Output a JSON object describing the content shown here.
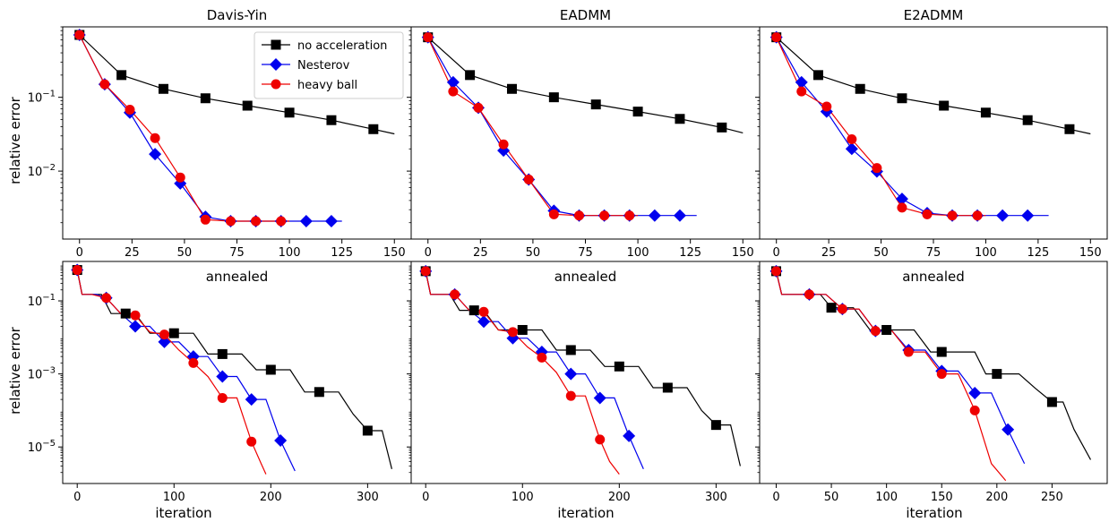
{
  "figure": {
    "ylabel": "relative error",
    "xlabel": "iteration",
    "colors": {
      "none": "#000000",
      "nesterov": "#0000ee",
      "heavy": "#ee0000"
    },
    "legend": {
      "placement": "top-right of first panel",
      "entries": [
        "no acceleration",
        "Nesterov",
        "heavy ball"
      ]
    }
  },
  "chart_data": [
    {
      "type": "line",
      "title": "Davis-Yin",
      "yscale": "log",
      "xlim": [
        -8,
        158
      ],
      "ylim": [
        0.0012,
        0.9
      ],
      "xticks": [
        0,
        25,
        50,
        75,
        100,
        125,
        150
      ],
      "yticks": [
        {
          "v": 0.1,
          "label": "10^-1"
        },
        {
          "v": 0.01,
          "label": "10^-2"
        }
      ],
      "series": [
        {
          "name": "no acceleration",
          "color": "#000000",
          "marker": "square",
          "x": [
            0,
            20,
            40,
            60,
            80,
            100,
            120,
            140,
            150
          ],
          "y": [
            0.7,
            0.2,
            0.13,
            0.097,
            0.077,
            0.062,
            0.049,
            0.037,
            0.032
          ],
          "markers": [
            0,
            20,
            40,
            60,
            80,
            100,
            120,
            140
          ]
        },
        {
          "name": "Nesterov",
          "color": "#0000ee",
          "marker": "diamond",
          "x": [
            0,
            12,
            24,
            36,
            48,
            60,
            72,
            84,
            96,
            108,
            120,
            125
          ],
          "y": [
            0.7,
            0.15,
            0.062,
            0.017,
            0.0068,
            0.0024,
            0.0021,
            0.0021,
            0.0021,
            0.0021,
            0.0021,
            0.0021
          ],
          "markers": [
            0,
            12,
            24,
            36,
            48,
            60,
            72,
            84,
            96,
            108,
            120
          ]
        },
        {
          "name": "heavy ball",
          "color": "#ee0000",
          "marker": "circle",
          "x": [
            0,
            12,
            24,
            36,
            48,
            60,
            72,
            84,
            96,
            100
          ],
          "y": [
            0.7,
            0.15,
            0.068,
            0.028,
            0.0082,
            0.0022,
            0.0021,
            0.0021,
            0.0021,
            0.0021
          ],
          "markers": [
            0,
            12,
            24,
            36,
            48,
            60,
            72,
            84,
            96
          ]
        }
      ]
    },
    {
      "type": "line",
      "title": "EADMM",
      "yscale": "log",
      "xlim": [
        -8,
        158
      ],
      "ylim": [
        0.0012,
        0.9
      ],
      "xticks": [
        0,
        25,
        50,
        75,
        100,
        125,
        150
      ],
      "yticks": [
        {
          "v": 0.1,
          "label": ""
        },
        {
          "v": 0.01,
          "label": ""
        }
      ],
      "series": [
        {
          "name": "no acceleration",
          "color": "#000000",
          "marker": "square",
          "x": [
            0,
            20,
            40,
            60,
            80,
            100,
            120,
            140,
            150
          ],
          "y": [
            0.65,
            0.2,
            0.13,
            0.1,
            0.08,
            0.064,
            0.051,
            0.039,
            0.033
          ],
          "markers": [
            0,
            20,
            40,
            60,
            80,
            100,
            120,
            140
          ]
        },
        {
          "name": "Nesterov",
          "color": "#0000ee",
          "marker": "diamond",
          "x": [
            0,
            12,
            24,
            36,
            48,
            60,
            72,
            84,
            96,
            108,
            120,
            128
          ],
          "y": [
            0.65,
            0.16,
            0.072,
            0.019,
            0.0077,
            0.0029,
            0.0025,
            0.0025,
            0.0025,
            0.0025,
            0.0025,
            0.0025
          ],
          "markers": [
            0,
            12,
            24,
            36,
            48,
            60,
            72,
            84,
            96,
            108,
            120
          ]
        },
        {
          "name": "heavy ball",
          "color": "#ee0000",
          "marker": "circle",
          "x": [
            0,
            12,
            24,
            36,
            48,
            60,
            72,
            84,
            96,
            100
          ],
          "y": [
            0.65,
            0.12,
            0.072,
            0.023,
            0.0077,
            0.0026,
            0.0025,
            0.0025,
            0.0025,
            0.0025
          ],
          "markers": [
            0,
            12,
            24,
            36,
            48,
            60,
            72,
            84,
            96
          ]
        }
      ]
    },
    {
      "type": "line",
      "title": "E2ADMM",
      "yscale": "log",
      "xlim": [
        -8,
        158
      ],
      "ylim": [
        0.0012,
        0.9
      ],
      "xticks": [
        0,
        25,
        50,
        75,
        100,
        125,
        150
      ],
      "yticks": [
        {
          "v": 0.1,
          "label": ""
        },
        {
          "v": 0.01,
          "label": ""
        }
      ],
      "series": [
        {
          "name": "no acceleration",
          "color": "#000000",
          "marker": "square",
          "x": [
            0,
            20,
            40,
            60,
            80,
            100,
            120,
            140,
            150
          ],
          "y": [
            0.65,
            0.2,
            0.13,
            0.097,
            0.077,
            0.062,
            0.049,
            0.037,
            0.032
          ],
          "markers": [
            0,
            20,
            40,
            60,
            80,
            100,
            120,
            140
          ]
        },
        {
          "name": "Nesterov",
          "color": "#0000ee",
          "marker": "diamond",
          "x": [
            0,
            12,
            24,
            36,
            48,
            60,
            72,
            84,
            96,
            108,
            120,
            130
          ],
          "y": [
            0.65,
            0.16,
            0.064,
            0.02,
            0.0099,
            0.0042,
            0.0027,
            0.0025,
            0.0025,
            0.0025,
            0.0025,
            0.0025
          ],
          "markers": [
            0,
            12,
            24,
            36,
            48,
            60,
            72,
            84,
            96,
            108,
            120
          ]
        },
        {
          "name": "heavy ball",
          "color": "#ee0000",
          "marker": "circle",
          "x": [
            0,
            12,
            24,
            36,
            48,
            60,
            72,
            84,
            96,
            100
          ],
          "y": [
            0.65,
            0.12,
            0.075,
            0.027,
            0.011,
            0.0032,
            0.0026,
            0.0025,
            0.0025,
            0.0025
          ],
          "markers": [
            0,
            12,
            24,
            36,
            48,
            60,
            72,
            84,
            96
          ]
        }
      ]
    },
    {
      "type": "line",
      "title": "annealed",
      "yscale": "log",
      "xlim": [
        -15,
        345
      ],
      "ylim": [
        1e-06,
        1.2
      ],
      "xticks": [
        0,
        100,
        200,
        300
      ],
      "yticks": [
        {
          "v": 0.1,
          "label": "10^-1"
        },
        {
          "v": 0.001,
          "label": "10^-3"
        },
        {
          "v": 1e-05,
          "label": "10^-5"
        }
      ],
      "series": [
        {
          "name": "no acceleration",
          "color": "#000000",
          "marker": "square",
          "x": [
            0,
            5,
            25,
            35,
            50,
            60,
            75,
            90,
            100,
            120,
            135,
            150,
            170,
            185,
            200,
            220,
            235,
            250,
            270,
            285,
            300,
            315,
            325
          ],
          "y": [
            0.7,
            0.15,
            0.15,
            0.045,
            0.045,
            0.045,
            0.013,
            0.013,
            0.013,
            0.013,
            0.0035,
            0.0035,
            0.0035,
            0.0013,
            0.0013,
            0.0013,
            0.00032,
            0.00032,
            0.00032,
            8e-05,
            2.8e-05,
            2.8e-05,
            2.5e-06
          ],
          "markers": [
            0,
            50,
            100,
            150,
            200,
            250,
            300
          ]
        },
        {
          "name": "Nesterov",
          "color": "#0000ee",
          "marker": "diamond",
          "x": [
            0,
            5,
            20,
            30,
            45,
            60,
            75,
            90,
            105,
            120,
            135,
            150,
            165,
            180,
            195,
            210,
            225
          ],
          "y": [
            0.7,
            0.15,
            0.15,
            0.12,
            0.045,
            0.02,
            0.02,
            0.0075,
            0.0075,
            0.003,
            0.003,
            0.00085,
            0.00085,
            0.0002,
            0.0002,
            1.5e-05,
            2.2e-06
          ],
          "markers": [
            0,
            30,
            60,
            90,
            120,
            150,
            180,
            210
          ]
        },
        {
          "name": "heavy ball",
          "color": "#ee0000",
          "marker": "circle",
          "x": [
            0,
            5,
            15,
            30,
            45,
            60,
            75,
            90,
            105,
            120,
            135,
            150,
            165,
            180,
            190,
            195
          ],
          "y": [
            0.7,
            0.15,
            0.15,
            0.12,
            0.045,
            0.04,
            0.014,
            0.012,
            0.0045,
            0.002,
            0.00085,
            0.00022,
            0.00022,
            1.4e-05,
            3.5e-06,
            1.8e-06
          ],
          "markers": [
            0,
            30,
            60,
            90,
            120,
            150,
            180
          ]
        }
      ]
    },
    {
      "type": "line",
      "title": "annealed",
      "yscale": "log",
      "xlim": [
        -15,
        345
      ],
      "ylim": [
        1e-06,
        1.2
      ],
      "xticks": [
        0,
        100,
        200,
        300
      ],
      "yticks": [
        {
          "v": 0.1,
          "label": ""
        },
        {
          "v": 0.001,
          "label": ""
        },
        {
          "v": 1e-05,
          "label": ""
        }
      ],
      "series": [
        {
          "name": "no acceleration",
          "color": "#000000",
          "marker": "square",
          "x": [
            0,
            5,
            25,
            35,
            50,
            60,
            75,
            90,
            100,
            120,
            135,
            150,
            170,
            185,
            200,
            220,
            235,
            250,
            270,
            285,
            300,
            315,
            325
          ],
          "y": [
            0.65,
            0.15,
            0.15,
            0.055,
            0.055,
            0.055,
            0.016,
            0.016,
            0.016,
            0.016,
            0.0045,
            0.0045,
            0.0045,
            0.0016,
            0.0016,
            0.0016,
            0.00042,
            0.00042,
            0.00042,
            0.0001,
            4e-05,
            4e-05,
            3e-06
          ],
          "markers": [
            0,
            50,
            100,
            150,
            200,
            250,
            300
          ]
        },
        {
          "name": "Nesterov",
          "color": "#0000ee",
          "marker": "diamond",
          "x": [
            0,
            5,
            20,
            30,
            45,
            60,
            75,
            90,
            105,
            120,
            135,
            150,
            165,
            180,
            195,
            210,
            225
          ],
          "y": [
            0.65,
            0.15,
            0.15,
            0.15,
            0.055,
            0.027,
            0.027,
            0.0095,
            0.0095,
            0.004,
            0.004,
            0.001,
            0.001,
            0.00022,
            0.00022,
            2e-05,
            2.5e-06
          ],
          "markers": [
            0,
            30,
            60,
            90,
            120,
            150,
            180,
            210
          ]
        },
        {
          "name": "heavy ball",
          "color": "#ee0000",
          "marker": "circle",
          "x": [
            0,
            5,
            15,
            30,
            45,
            60,
            75,
            90,
            105,
            120,
            135,
            150,
            165,
            180,
            190,
            200
          ],
          "y": [
            0.65,
            0.15,
            0.15,
            0.15,
            0.055,
            0.05,
            0.016,
            0.014,
            0.0055,
            0.0028,
            0.0011,
            0.00025,
            0.00025,
            1.6e-05,
            4e-06,
            1.8e-06
          ],
          "markers": [
            0,
            30,
            60,
            90,
            120,
            150,
            180
          ]
        }
      ]
    },
    {
      "type": "line",
      "title": "annealed",
      "yscale": "log",
      "xlim": [
        -15,
        300
      ],
      "ylim": [
        1e-06,
        1.2
      ],
      "xticks": [
        0,
        50,
        100,
        150,
        200,
        250
      ],
      "yticks": [
        {
          "v": 0.1,
          "label": ""
        },
        {
          "v": 0.001,
          "label": ""
        },
        {
          "v": 1e-05,
          "label": ""
        }
      ],
      "series": [
        {
          "name": "no acceleration",
          "color": "#000000",
          "marker": "square",
          "x": [
            0,
            5,
            25,
            40,
            50,
            55,
            70,
            85,
            100,
            110,
            125,
            140,
            150,
            165,
            180,
            190,
            200,
            220,
            235,
            250,
            260,
            270,
            285
          ],
          "y": [
            0.65,
            0.15,
            0.15,
            0.15,
            0.065,
            0.065,
            0.065,
            0.016,
            0.016,
            0.016,
            0.016,
            0.004,
            0.004,
            0.004,
            0.004,
            0.001,
            0.001,
            0.001,
            0.0004,
            0.00017,
            0.00017,
            3e-05,
            4.5e-06
          ],
          "markers": [
            0,
            50,
            100,
            150,
            200,
            250
          ]
        },
        {
          "name": "Nesterov",
          "color": "#0000ee",
          "marker": "diamond",
          "x": [
            0,
            5,
            20,
            30,
            45,
            60,
            75,
            90,
            105,
            120,
            135,
            150,
            165,
            180,
            195,
            210,
            225
          ],
          "y": [
            0.65,
            0.15,
            0.15,
            0.15,
            0.15,
            0.06,
            0.06,
            0.015,
            0.015,
            0.0045,
            0.0045,
            0.0012,
            0.0012,
            0.0003,
            0.0003,
            3e-05,
            3.5e-06
          ],
          "markers": [
            0,
            30,
            60,
            90,
            120,
            150,
            180,
            210
          ]
        },
        {
          "name": "heavy ball",
          "color": "#ee0000",
          "marker": "circle",
          "x": [
            0,
            5,
            15,
            30,
            45,
            60,
            75,
            90,
            105,
            120,
            135,
            150,
            165,
            180,
            195,
            208
          ],
          "y": [
            0.65,
            0.15,
            0.15,
            0.15,
            0.15,
            0.06,
            0.06,
            0.015,
            0.015,
            0.004,
            0.004,
            0.001,
            0.001,
            0.0001,
            3.5e-06,
            1.2e-06
          ],
          "markers": [
            0,
            30,
            60,
            90,
            120,
            150,
            180
          ]
        }
      ]
    }
  ]
}
